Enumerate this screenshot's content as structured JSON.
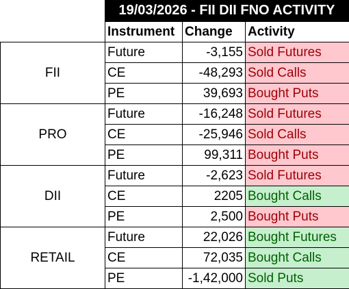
{
  "title": "19/03/2026 - FII DII FNO ACTIVITY",
  "headers": {
    "instrument": "Instrument",
    "change": "Change",
    "activity": "Activity"
  },
  "colors": {
    "title_bg": "#000000",
    "title_fg": "#ffffff",
    "sell_bg": "#ffc7ce",
    "sell_fg": "#9c0006",
    "buy_bg": "#c6efce",
    "buy_fg": "#006100"
  },
  "groups": [
    {
      "entity": "FII",
      "rows": [
        {
          "instrument": "Future",
          "change": "-3,155",
          "activity": "Sold Futures",
          "tone": "red"
        },
        {
          "instrument": "CE",
          "change": "-48,293",
          "activity": "Sold Calls",
          "tone": "red"
        },
        {
          "instrument": "PE",
          "change": "39,693",
          "activity": "Bought Puts",
          "tone": "red"
        }
      ]
    },
    {
      "entity": "PRO",
      "rows": [
        {
          "instrument": "Future",
          "change": "-16,248",
          "activity": "Sold Futures",
          "tone": "red"
        },
        {
          "instrument": "CE",
          "change": "-25,946",
          "activity": "Sold Calls",
          "tone": "red"
        },
        {
          "instrument": "PE",
          "change": "99,311",
          "activity": "Bought Puts",
          "tone": "red"
        }
      ]
    },
    {
      "entity": "DII",
      "rows": [
        {
          "instrument": "Future",
          "change": "-2,623",
          "activity": "Sold Futures",
          "tone": "red"
        },
        {
          "instrument": "CE",
          "change": "2205",
          "activity": "Bought Calls",
          "tone": "green"
        },
        {
          "instrument": "PE",
          "change": "2,500",
          "activity": "Bought Puts",
          "tone": "red"
        }
      ]
    },
    {
      "entity": "RETAIL",
      "rows": [
        {
          "instrument": "Future",
          "change": "22,026",
          "activity": "Bought Futures",
          "tone": "green"
        },
        {
          "instrument": "CE",
          "change": "72,035",
          "activity": "Bought Calls",
          "tone": "green"
        },
        {
          "instrument": "PE",
          "change": "-1,42,000",
          "activity": "Sold Puts",
          "tone": "green"
        }
      ]
    }
  ]
}
